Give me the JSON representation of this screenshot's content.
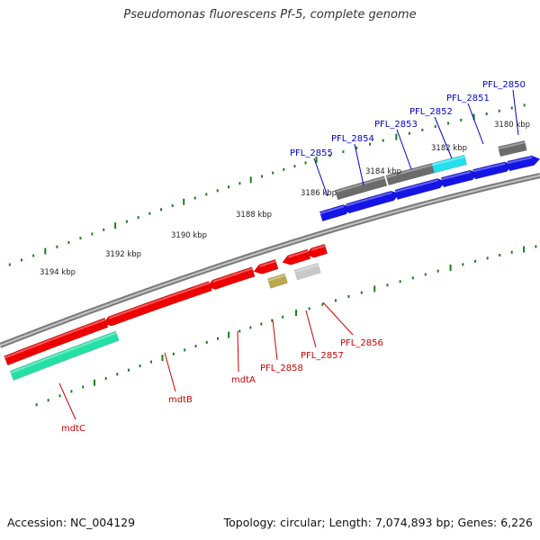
{
  "title": "Pseudomonas fluorescens Pf-5, complete genome",
  "footer": {
    "accession": "Accession: NC_004129",
    "summary": "Topology: circular; Length: 7,074,893 bp; Genes: 6,226"
  },
  "colors": {
    "backbone": "#8c8c8c",
    "tick": "#1a7f1a",
    "label_forward": "#0000cc",
    "label_reverse": "#cc0000"
  },
  "ticks": [
    "3180 kbp",
    "3182 kbp",
    "3184 kbp",
    "3186 kbp",
    "3188 kbp",
    "3190 kbp",
    "3192 kbp",
    "3194 kbp"
  ],
  "forward_labels": [
    "PFL_2850",
    "PFL_2851",
    "PFL_2852",
    "PFL_2853",
    "PFL_2854",
    "PFL_2855"
  ],
  "reverse_labels": [
    "PFL_2856",
    "PFL_2857",
    "PFL_2858",
    "mdtA",
    "mdtB",
    "mdtC"
  ]
}
